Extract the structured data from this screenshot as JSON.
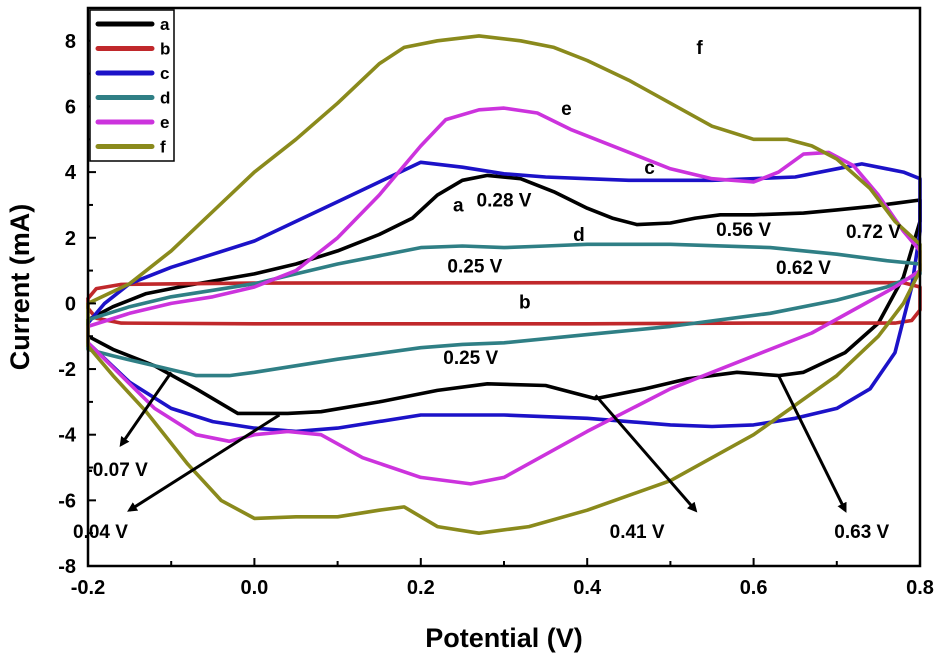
{
  "chart_data": {
    "type": "line",
    "xlabel": "Potential (V)",
    "ylabel": "Current (mA)",
    "xlim": [
      -0.2,
      0.8
    ],
    "ylim": [
      -8,
      9
    ],
    "xticks": [
      -0.2,
      0.0,
      0.2,
      0.4,
      0.6,
      0.8
    ],
    "yticks": [
      -8,
      -6,
      -4,
      -2,
      0,
      2,
      4,
      6,
      8
    ],
    "xtick_labels": [
      "-0.2",
      "0.0",
      "0.2",
      "0.4",
      "0.6",
      "0.8"
    ],
    "ytick_labels": [
      "-8",
      "-6",
      "-4",
      "-2",
      "0",
      "2",
      "4",
      "6",
      "8"
    ],
    "grid": false,
    "legend_position": "top-left",
    "series": [
      {
        "name": "a",
        "color": "#000000",
        "points": [
          [
            -0.2,
            -0.5
          ],
          [
            -0.17,
            -0.1
          ],
          [
            -0.13,
            0.3
          ],
          [
            -0.08,
            0.55
          ],
          [
            0.0,
            0.9
          ],
          [
            0.05,
            1.2
          ],
          [
            0.1,
            1.6
          ],
          [
            0.15,
            2.1
          ],
          [
            0.19,
            2.6
          ],
          [
            0.22,
            3.3
          ],
          [
            0.25,
            3.75
          ],
          [
            0.28,
            3.9
          ],
          [
            0.32,
            3.8
          ],
          [
            0.36,
            3.4
          ],
          [
            0.4,
            2.9
          ],
          [
            0.43,
            2.6
          ],
          [
            0.46,
            2.4
          ],
          [
            0.5,
            2.45
          ],
          [
            0.53,
            2.6
          ],
          [
            0.56,
            2.7
          ],
          [
            0.6,
            2.7
          ],
          [
            0.66,
            2.75
          ],
          [
            0.7,
            2.85
          ],
          [
            0.74,
            2.95
          ],
          [
            0.77,
            3.05
          ],
          [
            0.8,
            3.15
          ],
          [
            0.8,
            2.5
          ],
          [
            0.78,
            0.8
          ],
          [
            0.75,
            -0.6
          ],
          [
            0.71,
            -1.5
          ],
          [
            0.66,
            -2.1
          ],
          [
            0.63,
            -2.2
          ],
          [
            0.58,
            -2.1
          ],
          [
            0.52,
            -2.3
          ],
          [
            0.47,
            -2.6
          ],
          [
            0.41,
            -2.9
          ],
          [
            0.35,
            -2.5
          ],
          [
            0.28,
            -2.45
          ],
          [
            0.22,
            -2.65
          ],
          [
            0.15,
            -3.0
          ],
          [
            0.08,
            -3.3
          ],
          [
            0.04,
            -3.35
          ],
          [
            -0.02,
            -3.35
          ],
          [
            -0.07,
            -2.6
          ],
          [
            -0.12,
            -1.9
          ],
          [
            -0.17,
            -1.4
          ],
          [
            -0.2,
            -1.0
          ],
          [
            -0.2,
            -0.5
          ]
        ]
      },
      {
        "name": "b",
        "color": "#c0282b",
        "points": [
          [
            -0.2,
            0.15
          ],
          [
            -0.19,
            0.45
          ],
          [
            -0.16,
            0.58
          ],
          [
            0.0,
            0.62
          ],
          [
            0.4,
            0.63
          ],
          [
            0.6,
            0.63
          ],
          [
            0.78,
            0.63
          ],
          [
            0.8,
            0.5
          ],
          [
            0.8,
            -0.2
          ],
          [
            0.79,
            -0.52
          ],
          [
            0.77,
            -0.6
          ],
          [
            0.6,
            -0.6
          ],
          [
            0.4,
            -0.62
          ],
          [
            0.0,
            -0.62
          ],
          [
            -0.16,
            -0.6
          ],
          [
            -0.19,
            -0.45
          ],
          [
            -0.2,
            -0.15
          ],
          [
            -0.2,
            0.15
          ]
        ]
      },
      {
        "name": "c",
        "color": "#1c12c8",
        "points": [
          [
            -0.2,
            -0.6
          ],
          [
            -0.18,
            0.0
          ],
          [
            -0.15,
            0.6
          ],
          [
            -0.1,
            1.1
          ],
          [
            -0.05,
            1.5
          ],
          [
            0.0,
            1.9
          ],
          [
            0.05,
            2.5
          ],
          [
            0.1,
            3.1
          ],
          [
            0.15,
            3.7
          ],
          [
            0.2,
            4.3
          ],
          [
            0.25,
            4.15
          ],
          [
            0.3,
            3.95
          ],
          [
            0.35,
            3.85
          ],
          [
            0.4,
            3.8
          ],
          [
            0.45,
            3.75
          ],
          [
            0.5,
            3.75
          ],
          [
            0.55,
            3.75
          ],
          [
            0.6,
            3.8
          ],
          [
            0.65,
            3.85
          ],
          [
            0.7,
            4.1
          ],
          [
            0.73,
            4.25
          ],
          [
            0.76,
            4.1
          ],
          [
            0.78,
            4.0
          ],
          [
            0.8,
            3.8
          ],
          [
            0.8,
            2.2
          ],
          [
            0.79,
            0.5
          ],
          [
            0.77,
            -1.5
          ],
          [
            0.74,
            -2.6
          ],
          [
            0.7,
            -3.2
          ],
          [
            0.65,
            -3.5
          ],
          [
            0.6,
            -3.7
          ],
          [
            0.55,
            -3.75
          ],
          [
            0.5,
            -3.7
          ],
          [
            0.4,
            -3.5
          ],
          [
            0.3,
            -3.4
          ],
          [
            0.2,
            -3.4
          ],
          [
            0.1,
            -3.8
          ],
          [
            0.05,
            -3.9
          ],
          [
            0.0,
            -3.8
          ],
          [
            -0.05,
            -3.6
          ],
          [
            -0.1,
            -3.2
          ],
          [
            -0.15,
            -2.4
          ],
          [
            -0.2,
            -1.2
          ],
          [
            -0.2,
            -0.6
          ]
        ]
      },
      {
        "name": "d",
        "color": "#2f7f85",
        "points": [
          [
            -0.2,
            -0.5
          ],
          [
            -0.15,
            -0.1
          ],
          [
            -0.1,
            0.2
          ],
          [
            -0.05,
            0.4
          ],
          [
            0.0,
            0.6
          ],
          [
            0.05,
            0.9
          ],
          [
            0.1,
            1.2
          ],
          [
            0.15,
            1.45
          ],
          [
            0.2,
            1.7
          ],
          [
            0.25,
            1.75
          ],
          [
            0.3,
            1.7
          ],
          [
            0.35,
            1.75
          ],
          [
            0.4,
            1.8
          ],
          [
            0.5,
            1.8
          ],
          [
            0.62,
            1.7
          ],
          [
            0.7,
            1.5
          ],
          [
            0.76,
            1.3
          ],
          [
            0.8,
            1.2
          ],
          [
            0.8,
            0.9
          ],
          [
            0.76,
            0.5
          ],
          [
            0.7,
            0.1
          ],
          [
            0.62,
            -0.3
          ],
          [
            0.5,
            -0.7
          ],
          [
            0.4,
            -0.95
          ],
          [
            0.3,
            -1.2
          ],
          [
            0.25,
            -1.25
          ],
          [
            0.2,
            -1.35
          ],
          [
            0.1,
            -1.7
          ],
          [
            0.0,
            -2.1
          ],
          [
            -0.03,
            -2.2
          ],
          [
            -0.07,
            -2.2
          ],
          [
            -0.12,
            -1.9
          ],
          [
            -0.17,
            -1.6
          ],
          [
            -0.2,
            -1.4
          ],
          [
            -0.2,
            -0.5
          ]
        ]
      },
      {
        "name": "e",
        "color": "#cc33dd",
        "points": [
          [
            -0.2,
            -0.7
          ],
          [
            -0.15,
            -0.3
          ],
          [
            -0.1,
            0.0
          ],
          [
            -0.05,
            0.2
          ],
          [
            0.0,
            0.5
          ],
          [
            0.05,
            1.0
          ],
          [
            0.1,
            2.0
          ],
          [
            0.15,
            3.3
          ],
          [
            0.2,
            4.8
          ],
          [
            0.23,
            5.6
          ],
          [
            0.27,
            5.9
          ],
          [
            0.3,
            5.95
          ],
          [
            0.34,
            5.8
          ],
          [
            0.38,
            5.3
          ],
          [
            0.44,
            4.7
          ],
          [
            0.5,
            4.1
          ],
          [
            0.55,
            3.8
          ],
          [
            0.6,
            3.7
          ],
          [
            0.63,
            4.0
          ],
          [
            0.66,
            4.55
          ],
          [
            0.69,
            4.6
          ],
          [
            0.72,
            4.2
          ],
          [
            0.75,
            3.3
          ],
          [
            0.78,
            2.2
          ],
          [
            0.8,
            1.6
          ],
          [
            0.8,
            1.0
          ],
          [
            0.77,
            0.5
          ],
          [
            0.72,
            -0.2
          ],
          [
            0.67,
            -0.9
          ],
          [
            0.6,
            -1.6
          ],
          [
            0.5,
            -2.6
          ],
          [
            0.4,
            -3.9
          ],
          [
            0.35,
            -4.6
          ],
          [
            0.3,
            -5.3
          ],
          [
            0.26,
            -5.5
          ],
          [
            0.2,
            -5.3
          ],
          [
            0.13,
            -4.7
          ],
          [
            0.08,
            -4.0
          ],
          [
            0.04,
            -3.9
          ],
          [
            0.0,
            -4.0
          ],
          [
            -0.03,
            -4.2
          ],
          [
            -0.07,
            -4.0
          ],
          [
            -0.12,
            -3.2
          ],
          [
            -0.16,
            -2.2
          ],
          [
            -0.2,
            -1.2
          ],
          [
            -0.2,
            -0.7
          ]
        ]
      },
      {
        "name": "f",
        "color": "#8a8a1c",
        "points": [
          [
            -0.2,
            0.0
          ],
          [
            -0.15,
            0.6
          ],
          [
            -0.1,
            1.6
          ],
          [
            -0.05,
            2.8
          ],
          [
            0.0,
            4.0
          ],
          [
            0.05,
            5.0
          ],
          [
            0.1,
            6.1
          ],
          [
            0.15,
            7.3
          ],
          [
            0.18,
            7.8
          ],
          [
            0.22,
            8.0
          ],
          [
            0.27,
            8.15
          ],
          [
            0.32,
            8.0
          ],
          [
            0.36,
            7.8
          ],
          [
            0.4,
            7.4
          ],
          [
            0.45,
            6.8
          ],
          [
            0.5,
            6.1
          ],
          [
            0.55,
            5.4
          ],
          [
            0.6,
            5.0
          ],
          [
            0.64,
            5.0
          ],
          [
            0.67,
            4.8
          ],
          [
            0.7,
            4.4
          ],
          [
            0.74,
            3.5
          ],
          [
            0.77,
            2.5
          ],
          [
            0.8,
            1.8
          ],
          [
            0.8,
            1.0
          ],
          [
            0.78,
            0.0
          ],
          [
            0.75,
            -1.0
          ],
          [
            0.7,
            -2.2
          ],
          [
            0.6,
            -4.0
          ],
          [
            0.5,
            -5.4
          ],
          [
            0.4,
            -6.3
          ],
          [
            0.33,
            -6.8
          ],
          [
            0.27,
            -7.0
          ],
          [
            0.22,
            -6.8
          ],
          [
            0.18,
            -6.2
          ],
          [
            0.15,
            -6.3
          ],
          [
            0.1,
            -6.5
          ],
          [
            0.05,
            -6.5
          ],
          [
            0.0,
            -6.55
          ],
          [
            -0.04,
            -6.0
          ],
          [
            -0.08,
            -4.9
          ],
          [
            -0.13,
            -3.3
          ],
          [
            -0.17,
            -2.2
          ],
          [
            -0.2,
            -1.3
          ],
          [
            -0.2,
            0.0
          ]
        ]
      }
    ],
    "curve_labels": [
      {
        "text": "a",
        "x": 0.245,
        "y": 2.95
      },
      {
        "text": "b",
        "x": 0.325,
        "y": 0.0
      },
      {
        "text": "c",
        "x": 0.475,
        "y": 4.1
      },
      {
        "text": "d",
        "x": 0.39,
        "y": 2.05
      },
      {
        "text": "e",
        "x": 0.375,
        "y": 5.9
      },
      {
        "text": "f",
        "x": 0.535,
        "y": 7.75
      }
    ],
    "annotations": [
      {
        "text": "0.28 V",
        "x": 0.3,
        "y": 3.1
      },
      {
        "text": "0.56 V",
        "x": 0.588,
        "y": 2.2
      },
      {
        "text": "0.72 V",
        "x": 0.744,
        "y": 2.15
      },
      {
        "text": "0.25 V",
        "x": 0.265,
        "y": 1.1
      },
      {
        "text": "0.62 V",
        "x": 0.66,
        "y": 1.05
      },
      {
        "text": "0.25 V",
        "x": 0.26,
        "y": -1.7
      },
      {
        "text": "-0.07 V",
        "x": -0.165,
        "y": -5.1
      },
      {
        "text": "0.04 V",
        "x": -0.185,
        "y": -7.0
      },
      {
        "text": "0.41 V",
        "x": 0.46,
        "y": -7.0
      },
      {
        "text": "0.63 V",
        "x": 0.73,
        "y": -7.0
      }
    ],
    "arrows": [
      {
        "from": [
          -0.1,
          -2.1
        ],
        "to": [
          -0.16,
          -4.3
        ]
      },
      {
        "from": [
          0.03,
          -3.4
        ],
        "to": [
          -0.15,
          -6.3
        ]
      },
      {
        "from": [
          0.41,
          -2.8
        ],
        "to": [
          0.53,
          -6.3
        ]
      },
      {
        "from": [
          0.63,
          -2.2
        ],
        "to": [
          0.71,
          -6.3
        ]
      }
    ]
  }
}
